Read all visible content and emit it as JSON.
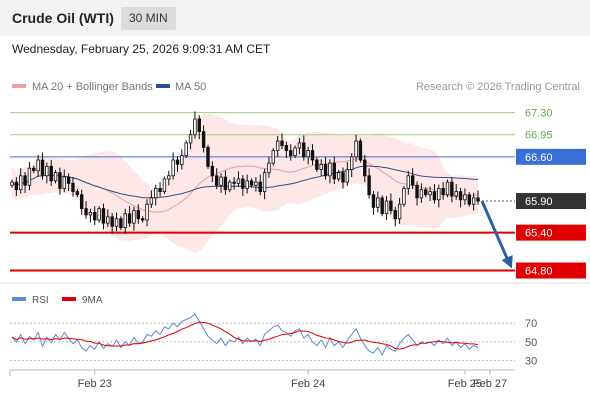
{
  "header": {
    "title": "Crude Oil (WTI)",
    "timeframe": "30 MIN",
    "datetime": "Wednesday, February 25, 2026 9:09:31 AM CET"
  },
  "legend": {
    "ma20_bb": "MA 20 + Bollinger Bands",
    "ma50": "MA 50",
    "credit": "Research © 2026 Trading Central"
  },
  "colors": {
    "ma20": "#e8a0a0",
    "ma50": "#2e4f8f",
    "bb_fill": "#fde4e4",
    "resistance_green": "#9fcf7f",
    "pivot_blue": "#3a6fd8",
    "support_red": "#e00000",
    "current_price_box": "#333333",
    "arrow": "#2e5fa0",
    "rsi": "#5b8ad8",
    "rsi_ma": "#e00000"
  },
  "chart_data": [
    {
      "type": "candlestick",
      "title": "",
      "ylim": [
        64.65,
        67.5
      ],
      "x_ticks": [
        "Feb 23",
        "Feb 24",
        "Feb 25",
        "Feb 27"
      ],
      "levels": [
        {
          "value": 67.3,
          "label": "67.30",
          "kind": "resistance"
        },
        {
          "value": 66.95,
          "label": "66.95",
          "kind": "resistance"
        },
        {
          "value": 66.6,
          "label": "66.60",
          "kind": "pivot"
        },
        {
          "value": 65.9,
          "label": "65.90",
          "kind": "current"
        },
        {
          "value": 65.4,
          "label": "65.40",
          "kind": "support"
        },
        {
          "value": 64.8,
          "label": "64.80",
          "kind": "support"
        }
      ],
      "series": [
        {
          "name": "MA 20 + Bollinger Bands",
          "role": "ma20"
        },
        {
          "name": "MA 50",
          "role": "ma50"
        }
      ],
      "closes": [
        66.2,
        66.08,
        66.3,
        66.15,
        66.42,
        66.38,
        66.55,
        66.3,
        66.45,
        66.22,
        66.35,
        66.1,
        66.28,
        66.18,
        66.05,
        66.0,
        65.78,
        65.68,
        65.72,
        65.6,
        65.78,
        65.55,
        65.65,
        65.5,
        65.62,
        65.48,
        65.7,
        65.55,
        65.75,
        65.62,
        65.6,
        65.85,
        65.95,
        66.1,
        66.05,
        66.25,
        66.3,
        66.55,
        66.48,
        66.62,
        66.82,
        66.95,
        67.2,
        67.0,
        66.75,
        66.45,
        66.3,
        66.15,
        66.28,
        66.08,
        66.2,
        66.18,
        66.25,
        66.1,
        66.22,
        66.15,
        66.2,
        66.05,
        66.35,
        66.5,
        66.7,
        66.85,
        66.78,
        66.7,
        66.62,
        66.74,
        66.82,
        66.6,
        66.7,
        66.55,
        66.4,
        66.48,
        66.3,
        66.5,
        66.25,
        66.35,
        66.2,
        66.4,
        66.6,
        66.85,
        66.55,
        66.3,
        66.0,
        65.8,
        65.95,
        65.7,
        65.9,
        65.75,
        65.62,
        65.85,
        66.1,
        66.3,
        66.15,
        65.95,
        66.08,
        66.0,
        66.05,
        65.92,
        66.1,
        66.0,
        66.2,
        65.98,
        66.05,
        65.92,
        66.0,
        65.85,
        65.95,
        65.9
      ],
      "x_tick_index": [
        19,
        68,
        104,
        121
      ]
    },
    {
      "type": "line",
      "title": "",
      "ylim": [
        22,
        82
      ],
      "y_ticks": [
        70,
        50,
        30
      ],
      "series": [
        {
          "name": "RSI",
          "role": "rsi"
        },
        {
          "name": "9MA",
          "role": "rsi_ma"
        }
      ],
      "rsi": [
        55,
        50,
        58,
        48,
        56,
        52,
        60,
        45,
        55,
        49,
        58,
        52,
        60,
        54,
        48,
        52,
        44,
        40,
        46,
        42,
        50,
        43,
        48,
        45,
        52,
        44,
        50,
        46,
        55,
        48,
        50,
        58,
        56,
        62,
        58,
        66,
        64,
        70,
        66,
        72,
        74,
        76,
        80,
        72,
        64,
        56,
        52,
        48,
        54,
        46,
        52,
        50,
        55,
        48,
        54,
        50,
        53,
        46,
        58,
        62,
        66,
        68,
        62,
        60,
        56,
        62,
        64,
        54,
        58,
        50,
        46,
        52,
        44,
        54,
        46,
        50,
        44,
        52,
        58,
        64,
        54,
        46,
        40,
        38,
        44,
        36,
        46,
        42,
        40,
        48,
        54,
        58,
        52,
        46,
        50,
        48,
        50,
        46,
        52,
        48,
        54,
        46,
        50,
        44,
        48,
        42,
        46,
        44
      ]
    }
  ]
}
